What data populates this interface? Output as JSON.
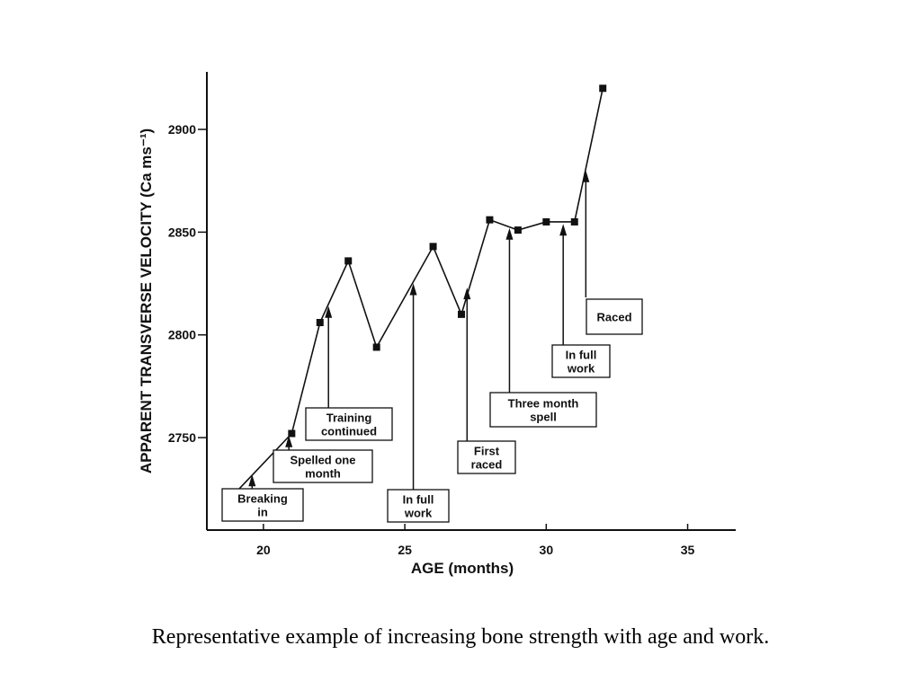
{
  "chart_data": {
    "type": "line",
    "xlabel": "AGE (months)",
    "ylabel": "APPARENT TRANSVERSE VELOCITY (Ca ms⁻¹)",
    "xlim": [
      18,
      36.7
    ],
    "ylim": [
      2705,
      2928
    ],
    "x_ticks": [
      20,
      25,
      30,
      35
    ],
    "y_ticks": [
      2750,
      2800,
      2850,
      2900
    ],
    "series": [
      {
        "x": [
          19.0,
          21.0,
          22.0,
          23.0,
          24.0,
          26.0,
          27.0,
          28.0,
          29.0,
          30.0,
          31.0,
          32.0
        ],
        "y": [
          2723,
          2752,
          2806,
          2836,
          2794,
          2843,
          2810,
          2856,
          2851,
          2855,
          2855,
          2920
        ]
      }
    ],
    "annotations": [
      {
        "lines": [
          "Breaking",
          "in"
        ],
        "arrow_x": 19.6,
        "arrow_y": 2732
      },
      {
        "lines": [
          "Spelled one",
          "month"
        ],
        "arrow_x": 20.9,
        "arrow_y": 2751
      },
      {
        "lines": [
          "Training",
          "continued"
        ],
        "arrow_x": 22.3,
        "arrow_y": 2814
      },
      {
        "lines": [
          "In full",
          "work"
        ],
        "arrow_x": 25.3,
        "arrow_y": 2825
      },
      {
        "lines": [
          "First",
          "raced"
        ],
        "arrow_x": 27.2,
        "arrow_y": 2823
      },
      {
        "lines": [
          "Three month",
          "spell"
        ],
        "arrow_x": 28.7,
        "arrow_y": 2852
      },
      {
        "lines": [
          "In full",
          "work"
        ],
        "arrow_x": 30.6,
        "arrow_y": 2854
      },
      {
        "lines": [
          "Raced"
        ],
        "arrow_x": 31.4,
        "arrow_y": 2880
      }
    ],
    "grid": false,
    "legend": "none"
  },
  "caption": "Representative example of increasing bone strength with age and work."
}
